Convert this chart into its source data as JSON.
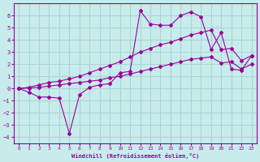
{
  "xlabel": "Windchill (Refroidissement éolien,°C)",
  "bg_color": "#c8ecec",
  "grid_color": "#aad4d4",
  "line_color": "#990099",
  "x_hours": [
    0,
    1,
    2,
    3,
    4,
    5,
    6,
    7,
    8,
    9,
    10,
    11,
    12,
    13,
    14,
    15,
    16,
    17,
    18,
    19,
    20,
    21,
    22,
    23
  ],
  "y_actual": [
    0.0,
    -0.3,
    -0.7,
    -0.7,
    -0.8,
    -3.7,
    -0.5,
    0.1,
    0.3,
    0.4,
    1.3,
    1.4,
    6.4,
    5.3,
    5.2,
    5.2,
    6.0,
    6.3,
    5.9,
    3.2,
    4.6,
    1.6,
    1.5,
    2.7
  ],
  "y_upper": [
    0.0,
    0.1,
    0.3,
    0.5,
    0.6,
    0.8,
    1.0,
    1.3,
    1.6,
    1.9,
    2.2,
    2.6,
    3.0,
    3.3,
    3.6,
    3.8,
    4.1,
    4.4,
    4.6,
    4.8,
    3.2,
    3.3,
    2.3,
    2.7
  ],
  "y_lower": [
    0.0,
    0.05,
    0.1,
    0.2,
    0.3,
    0.4,
    0.5,
    0.6,
    0.7,
    0.9,
    1.0,
    1.2,
    1.4,
    1.6,
    1.8,
    2.0,
    2.2,
    2.4,
    2.5,
    2.6,
    2.1,
    2.2,
    1.6,
    2.0
  ],
  "ylim": [
    -4.5,
    7.0
  ],
  "yticks": [
    -4,
    -3,
    -2,
    -1,
    0,
    1,
    2,
    3,
    4,
    5,
    6
  ],
  "xlim": [
    -0.5,
    23.5
  ],
  "xticks": [
    0,
    1,
    2,
    3,
    4,
    5,
    6,
    7,
    8,
    9,
    10,
    11,
    12,
    13,
    14,
    15,
    16,
    17,
    18,
    19,
    20,
    21,
    22,
    23
  ]
}
